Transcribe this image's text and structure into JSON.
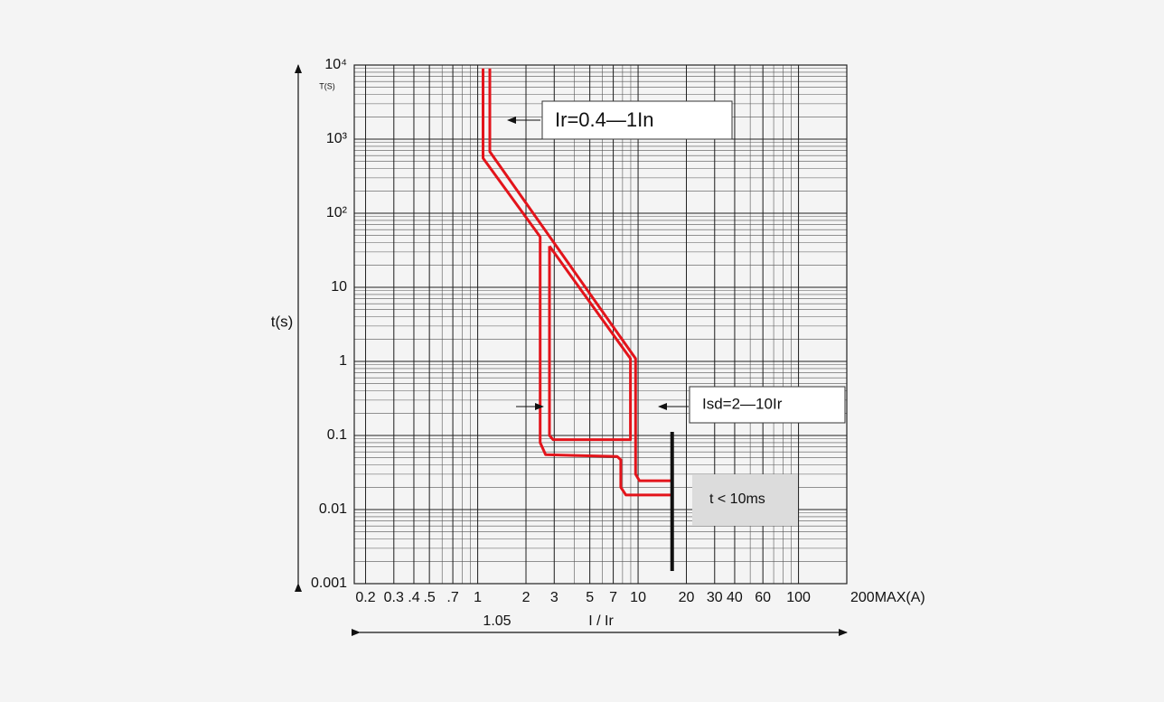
{
  "chart_data": {
    "type": "line",
    "y_label": "t(s)",
    "y_unit": "T(S)",
    "x_label": "I / Ir",
    "x_note": "1.05",
    "x_log": true,
    "y_log": true,
    "grid": true,
    "xlim": [
      0.17,
      200
    ],
    "ylim": [
      0.001,
      10000
    ],
    "xticks": [
      0.2,
      0.3,
      {
        "value": 0.4,
        "label": ".4"
      },
      {
        "value": 0.5,
        "label": ".5"
      },
      {
        "value": 0.7,
        "label": ".7"
      },
      1,
      2,
      3,
      5,
      7,
      10,
      20,
      30,
      40,
      60,
      100,
      {
        "value": 200,
        "label": "200MAX(A)"
      }
    ],
    "yticks": [
      {
        "value": 10000,
        "label": "10⁴"
      },
      {
        "value": 1000,
        "label": "10³"
      },
      {
        "value": 100,
        "label": "10²"
      },
      10,
      1,
      0.1,
      0.01,
      0.001
    ],
    "annotations": [
      "Ir=0.4—1In",
      "Isd=2—10Ir",
      "t < 10ms"
    ],
    "series": [
      {
        "color": "#e3141b",
        "x": [
          1.08,
          1.08,
          2.45,
          2.45,
          2.65,
          7.4,
          7.8,
          7.8,
          8.4,
          16.3
        ],
        "values": [
          9000,
          555,
          48,
          0.08,
          0.055,
          0.052,
          0.047,
          0.02,
          0.0157,
          0.0157
        ]
      },
      {
        "color": "#e3141b",
        "x": [
          1.19,
          1.19,
          9.64,
          9.64,
          10.2,
          16.3
        ],
        "values": [
          9000,
          676,
          1.09,
          0.03,
          0.0245,
          0.0245
        ]
      },
      {
        "color": "#e3141b",
        "x": [
          2.8,
          2.8,
          2.95,
          8.96,
          8.96,
          2.8
        ],
        "values": [
          36,
          0.1,
          0.088,
          0.088,
          1.09,
          36
        ]
      }
    ]
  }
}
